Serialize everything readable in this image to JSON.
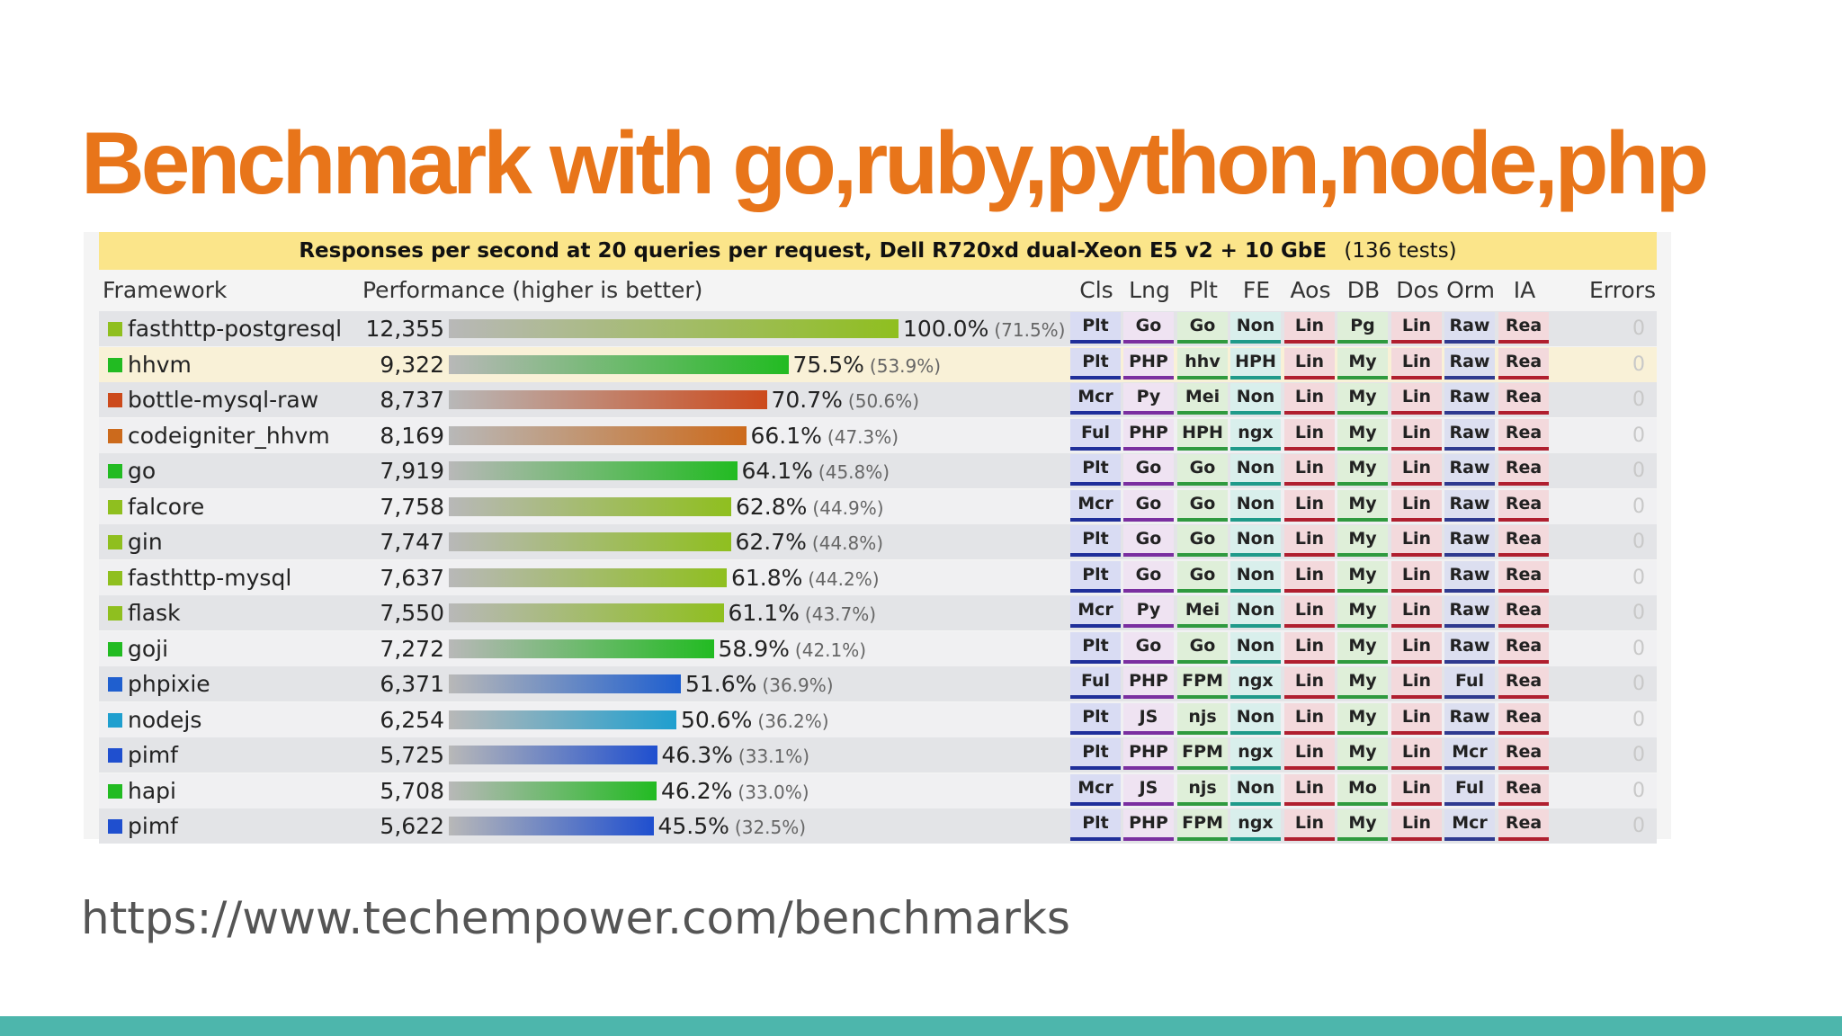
{
  "slide": {
    "title": "Benchmark with go,ruby,python,node,php",
    "url": "https://www.techempower.com/benchmarks",
    "colors": {
      "title": "#e8751a",
      "footer": "#4db6ac",
      "header_bg": "#fbe58a"
    }
  },
  "chart_data": {
    "type": "bar",
    "title": "Responses per second at 20 queries per request, Dell R720xd dual-Xeon E5 v2 + 10 GbE",
    "subtitle": "(136 tests)",
    "columns": [
      "Framework",
      "Performance (higher is better)",
      "Cls",
      "Lng",
      "Plt",
      "FE",
      "Aos",
      "DB",
      "Dos",
      "Orm",
      "IA",
      "Errors"
    ],
    "rows": [
      {
        "name": "fasthttp-postgresql",
        "rps": "12,355",
        "value": 12355,
        "pct": "100.0%",
        "rel": "(71.5%)",
        "pct_value": 100.0,
        "color": "#8fbf1f",
        "tags": [
          "Plt",
          "Go",
          "Go",
          "Non",
          "Lin",
          "Pg",
          "Lin",
          "Raw",
          "Rea"
        ],
        "errors": "0"
      },
      {
        "name": "hhvm",
        "rps": "9,322",
        "value": 9322,
        "pct": "75.5%",
        "rel": "(53.9%)",
        "pct_value": 75.5,
        "color": "#22bb22",
        "tags": [
          "Plt",
          "PHP",
          "hhv",
          "HPH",
          "Lin",
          "My",
          "Lin",
          "Raw",
          "Rea"
        ],
        "errors": "0"
      },
      {
        "name": "bottle-mysql-raw",
        "rps": "8,737",
        "value": 8737,
        "pct": "70.7%",
        "rel": "(50.6%)",
        "pct_value": 70.7,
        "color": "#cc4a1c",
        "tags": [
          "Mcr",
          "Py",
          "Mei",
          "Non",
          "Lin",
          "My",
          "Lin",
          "Raw",
          "Rea"
        ],
        "errors": "0"
      },
      {
        "name": "codeigniter_hhvm",
        "rps": "8,169",
        "value": 8169,
        "pct": "66.1%",
        "rel": "(47.3%)",
        "pct_value": 66.1,
        "color": "#cc6a1c",
        "tags": [
          "Ful",
          "PHP",
          "HPH",
          "ngx",
          "Lin",
          "My",
          "Lin",
          "Raw",
          "Rea"
        ],
        "errors": "0"
      },
      {
        "name": "go",
        "rps": "7,919",
        "value": 7919,
        "pct": "64.1%",
        "rel": "(45.8%)",
        "pct_value": 64.1,
        "color": "#22bb22",
        "tags": [
          "Plt",
          "Go",
          "Go",
          "Non",
          "Lin",
          "My",
          "Lin",
          "Raw",
          "Rea"
        ],
        "errors": "0"
      },
      {
        "name": "falcore",
        "rps": "7,758",
        "value": 7758,
        "pct": "62.8%",
        "rel": "(44.9%)",
        "pct_value": 62.8,
        "color": "#8fbf1f",
        "tags": [
          "Mcr",
          "Go",
          "Go",
          "Non",
          "Lin",
          "My",
          "Lin",
          "Raw",
          "Rea"
        ],
        "errors": "0"
      },
      {
        "name": "gin",
        "rps": "7,747",
        "value": 7747,
        "pct": "62.7%",
        "rel": "(44.8%)",
        "pct_value": 62.7,
        "color": "#8fbf1f",
        "tags": [
          "Plt",
          "Go",
          "Go",
          "Non",
          "Lin",
          "My",
          "Lin",
          "Raw",
          "Rea"
        ],
        "errors": "0"
      },
      {
        "name": "fasthttp-mysql",
        "rps": "7,637",
        "value": 7637,
        "pct": "61.8%",
        "rel": "(44.2%)",
        "pct_value": 61.8,
        "color": "#8fbf1f",
        "tags": [
          "Plt",
          "Go",
          "Go",
          "Non",
          "Lin",
          "My",
          "Lin",
          "Raw",
          "Rea"
        ],
        "errors": "0"
      },
      {
        "name": "flask",
        "rps": "7,550",
        "value": 7550,
        "pct": "61.1%",
        "rel": "(43.7%)",
        "pct_value": 61.1,
        "color": "#8fbf1f",
        "tags": [
          "Mcr",
          "Py",
          "Mei",
          "Non",
          "Lin",
          "My",
          "Lin",
          "Raw",
          "Rea"
        ],
        "errors": "0"
      },
      {
        "name": "goji",
        "rps": "7,272",
        "value": 7272,
        "pct": "58.9%",
        "rel": "(42.1%)",
        "pct_value": 58.9,
        "color": "#22bb22",
        "tags": [
          "Plt",
          "Go",
          "Go",
          "Non",
          "Lin",
          "My",
          "Lin",
          "Raw",
          "Rea"
        ],
        "errors": "0"
      },
      {
        "name": "phpixie",
        "rps": "6,371",
        "value": 6371,
        "pct": "51.6%",
        "rel": "(36.9%)",
        "pct_value": 51.6,
        "color": "#1f5fcf",
        "tags": [
          "Ful",
          "PHP",
          "FPM",
          "ngx",
          "Lin",
          "My",
          "Lin",
          "Ful",
          "Rea"
        ],
        "errors": "0"
      },
      {
        "name": "nodejs",
        "rps": "6,254",
        "value": 6254,
        "pct": "50.6%",
        "rel": "(36.2%)",
        "pct_value": 50.6,
        "color": "#1f9fcf",
        "tags": [
          "Plt",
          "JS",
          "njs",
          "Non",
          "Lin",
          "My",
          "Lin",
          "Raw",
          "Rea"
        ],
        "errors": "0"
      },
      {
        "name": "pimf",
        "rps": "5,725",
        "value": 5725,
        "pct": "46.3%",
        "rel": "(33.1%)",
        "pct_value": 46.3,
        "color": "#1f4fcf",
        "tags": [
          "Plt",
          "PHP",
          "FPM",
          "ngx",
          "Lin",
          "My",
          "Lin",
          "Mcr",
          "Rea"
        ],
        "errors": "0"
      },
      {
        "name": "hapi",
        "rps": "5,708",
        "value": 5708,
        "pct": "46.2%",
        "rel": "(33.0%)",
        "pct_value": 46.2,
        "color": "#22bb22",
        "tags": [
          "Mcr",
          "JS",
          "njs",
          "Non",
          "Lin",
          "Mo",
          "Lin",
          "Ful",
          "Rea"
        ],
        "errors": "0"
      },
      {
        "name": "pimf",
        "rps": "5,622",
        "value": 5622,
        "pct": "45.5%",
        "rel": "(32.5%)",
        "pct_value": 45.5,
        "color": "#1f4fcf",
        "tags": [
          "Plt",
          "PHP",
          "FPM",
          "ngx",
          "Lin",
          "My",
          "Lin",
          "Mcr",
          "Rea"
        ],
        "errors": "0"
      }
    ],
    "tag_styles": [
      {
        "bg": "#d9dcf3",
        "line": "#1f2f9a"
      },
      {
        "bg": "#efe3f2",
        "line": "#7a2fa0"
      },
      {
        "bg": "#dfefd9",
        "line": "#2f9a3f"
      },
      {
        "bg": "#d9efec",
        "line": "#1f9a8a"
      },
      {
        "bg": "#f3d9dc",
        "line": "#b01f2f"
      },
      {
        "bg": "#dfefd9",
        "line": "#2f9a3f"
      },
      {
        "bg": "#f3d9dc",
        "line": "#b01f2f"
      },
      {
        "bg": "#dcdff0",
        "line": "#2f3a8f"
      },
      {
        "bg": "#f3d9dc",
        "line": "#b01f2f"
      }
    ]
  }
}
